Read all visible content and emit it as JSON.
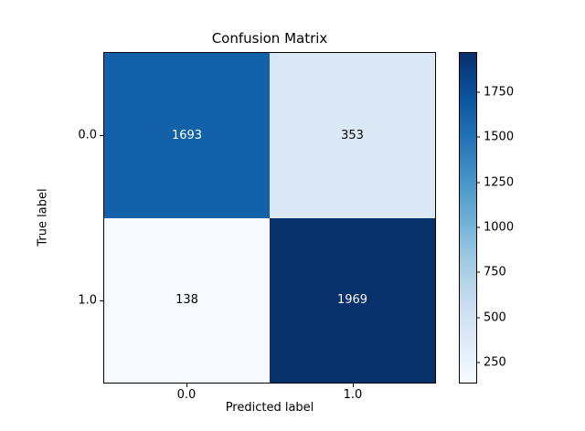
{
  "chart_data": {
    "type": "heatmap",
    "title": "Confusion Matrix",
    "xlabel": "Predicted label",
    "ylabel": "True label",
    "x_tick_labels": [
      "0.0",
      "1.0"
    ],
    "y_tick_labels": [
      "0.0",
      "1.0"
    ],
    "matrix": [
      [
        1693,
        353
      ],
      [
        138,
        1969
      ]
    ],
    "cell_colors": [
      [
        "#1361a9",
        "#dbe9f6"
      ],
      [
        "#f6faff",
        "#08306b"
      ]
    ],
    "cell_text_colors": [
      [
        "#ffffff",
        "#000000"
      ],
      [
        "#000000",
        "#ffffff"
      ]
    ],
    "colormap": "Blues",
    "legend_position": "right-colorbar",
    "grid": false,
    "colorbar": {
      "vmin": 138,
      "vmax": 1969,
      "ticks": [
        250,
        500,
        750,
        1000,
        1250,
        1500,
        1750
      ],
      "gradient_stops": [
        "#f7fbff",
        "#deebf7",
        "#c6dbef",
        "#9ecae1",
        "#6baed6",
        "#4292c6",
        "#2171b5",
        "#08519c",
        "#08306b"
      ]
    }
  }
}
